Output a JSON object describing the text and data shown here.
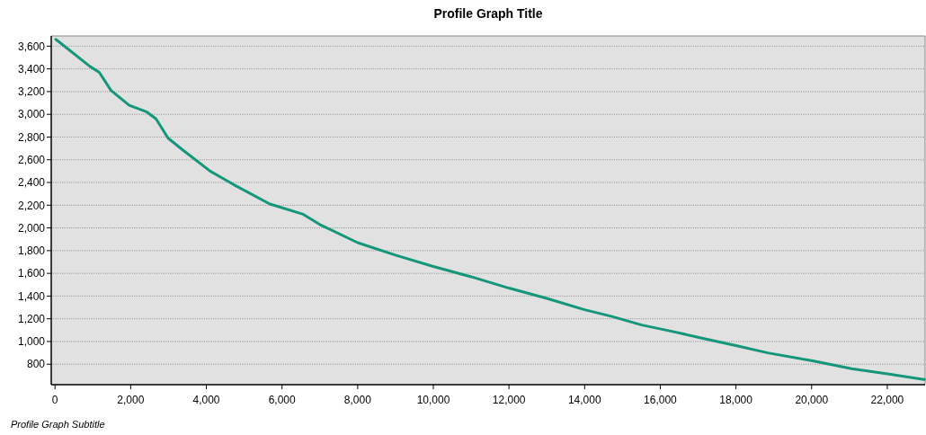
{
  "chart_data": {
    "type": "line",
    "title": "Profile Graph Title",
    "subtitle": "Profile Graph Subtitle",
    "xlim": [
      -100,
      23000
    ],
    "xticks": [
      {
        "value": 0,
        "label": "0"
      },
      {
        "value": 2000,
        "label": "2,000"
      },
      {
        "value": 4000,
        "label": "4,000"
      },
      {
        "value": 6000,
        "label": "6,000"
      },
      {
        "value": 8000,
        "label": "8,000"
      },
      {
        "value": 10000,
        "label": "10,000"
      },
      {
        "value": 12000,
        "label": "12,000"
      },
      {
        "value": 14000,
        "label": "14,000"
      },
      {
        "value": 16000,
        "label": "16,000"
      },
      {
        "value": 18000,
        "label": "18,000"
      },
      {
        "value": 20000,
        "label": "20,000"
      },
      {
        "value": 22000,
        "label": "22,000"
      }
    ],
    "ylim": [
      620,
      3690
    ],
    "yticks": [
      800,
      {
        "value": 1000,
        "label": "1,000"
      },
      {
        "value": 1200,
        "label": "1,200"
      },
      {
        "value": 1400,
        "label": "1,400"
      },
      {
        "value": 1600,
        "label": "1,600"
      },
      {
        "value": 1800,
        "label": "1,800"
      },
      {
        "value": 2000,
        "label": "2,000"
      },
      {
        "value": 2200,
        "label": "2,200"
      },
      {
        "value": 2400,
        "label": "2,400"
      },
      {
        "value": 2600,
        "label": "2,600"
      },
      {
        "value": 2800,
        "label": "2,800"
      },
      {
        "value": 3000,
        "label": "3,000"
      },
      {
        "value": 3200,
        "label": "3,200"
      },
      {
        "value": 3400,
        "label": "3,400"
      },
      {
        "value": 3600,
        "label": "3,600"
      }
    ],
    "grid": "y",
    "line_style": "solid",
    "series": [
      {
        "color": "#14967a",
        "x": [
          20,
          930,
          1170,
          1480,
          1960,
          2430,
          2670,
          2990,
          3380,
          4100,
          4730,
          5680,
          6560,
          7000,
          8000,
          9000,
          10000,
          11000,
          12000,
          13000,
          14000,
          14720,
          15510,
          16300,
          17100,
          18050,
          18840,
          20030,
          21060,
          22010,
          22980
        ],
        "values": [
          3660,
          3420,
          3370,
          3210,
          3080,
          3020,
          2960,
          2790,
          2685,
          2500,
          2380,
          2210,
          2120,
          2030,
          1870,
          1760,
          1660,
          1570,
          1470,
          1380,
          1280,
          1220,
          1145,
          1090,
          1030,
          960,
          900,
          830,
          760,
          715,
          665
        ]
      }
    ]
  }
}
